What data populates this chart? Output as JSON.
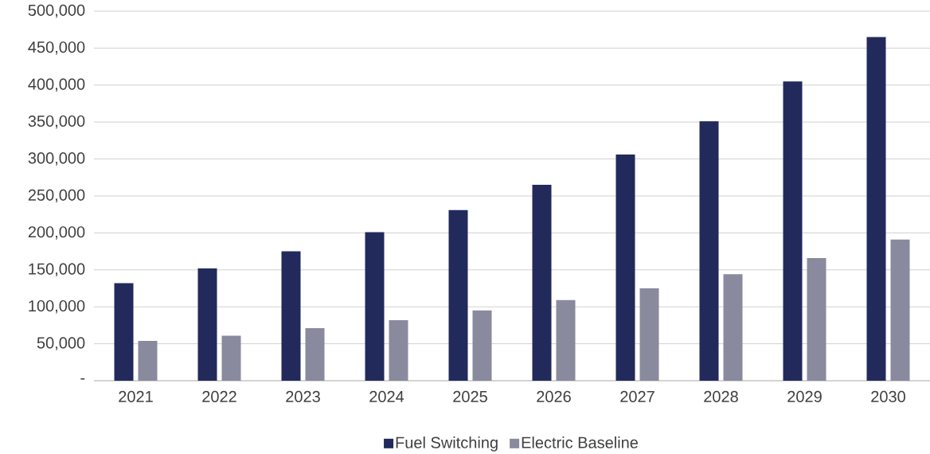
{
  "chart_data": {
    "type": "bar",
    "categories": [
      "2021",
      "2022",
      "2023",
      "2024",
      "2025",
      "2026",
      "2027",
      "2028",
      "2029",
      "2030"
    ],
    "series": [
      {
        "name": "Fuel Switching",
        "color": "#222a5c",
        "values": [
          132000,
          152000,
          175000,
          201000,
          231000,
          265000,
          306000,
          351000,
          405000,
          465000
        ]
      },
      {
        "name": "Electric Baseline",
        "color": "#8a8a9e",
        "values": [
          54000,
          61000,
          71000,
          82000,
          95000,
          109000,
          125000,
          144000,
          166000,
          191000
        ]
      }
    ],
    "ylim": [
      0,
      500000
    ],
    "yticks": [
      {
        "value": 0,
        "label": "-"
      },
      {
        "value": 50000,
        "label": "50,000"
      },
      {
        "value": 100000,
        "label": "100,000"
      },
      {
        "value": 150000,
        "label": "150,000"
      },
      {
        "value": 200000,
        "label": "200,000"
      },
      {
        "value": 250000,
        "label": "250,000"
      },
      {
        "value": 300000,
        "label": "300,000"
      },
      {
        "value": 350000,
        "label": "350,000"
      },
      {
        "value": 400000,
        "label": "400,000"
      },
      {
        "value": 450000,
        "label": "450,000"
      },
      {
        "value": 500000,
        "label": "500,000"
      }
    ],
    "grid": "y",
    "legend": "bottom"
  }
}
